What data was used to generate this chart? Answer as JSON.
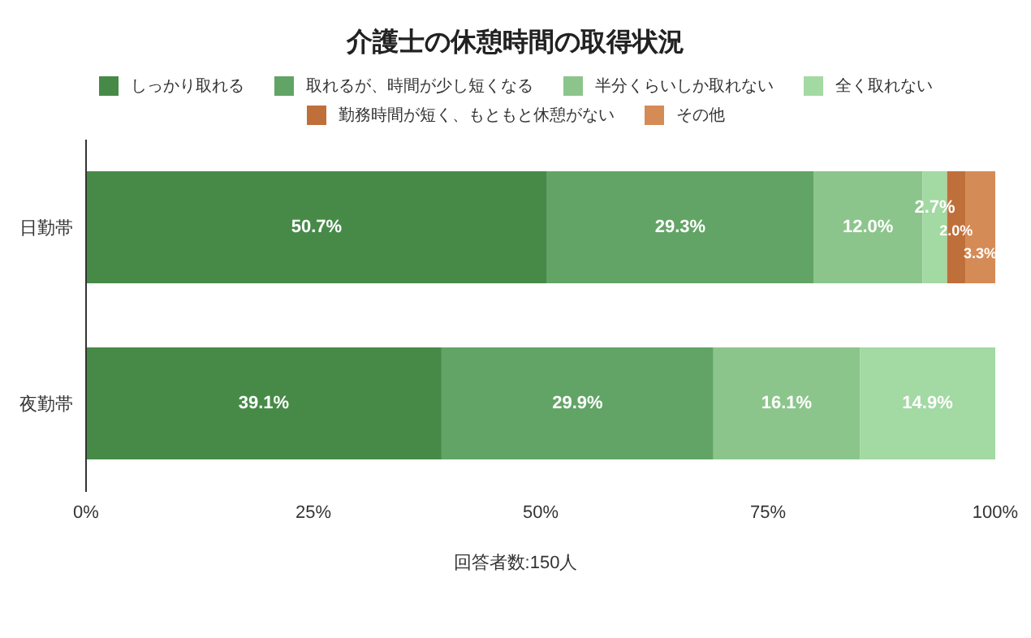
{
  "chart_data": {
    "type": "bar",
    "orientation": "horizontal",
    "stacked": true,
    "title": "介護士の休憩時間の取得状況",
    "xlabel": "回答者数:150人",
    "categories": [
      "日勤帯",
      "夜勤帯"
    ],
    "series": [
      {
        "name": "しっかり取れる",
        "color": "#478a48",
        "values": [
          50.7,
          39.1
        ],
        "value_labels": [
          "50.7%",
          "39.1%"
        ]
      },
      {
        "name": "取れるが、時間が少し短くなる",
        "color": "#62a466",
        "values": [
          29.3,
          29.9
        ],
        "value_labels": [
          "29.3%",
          "29.9%"
        ]
      },
      {
        "name": "半分くらいしか取れない",
        "color": "#8cc58c",
        "values": [
          12.0,
          16.1
        ],
        "value_labels": [
          "12.0%",
          "16.1%"
        ]
      },
      {
        "name": "全く取れない",
        "color": "#a3d9a3",
        "values": [
          2.7,
          14.9
        ],
        "value_labels": [
          "2.7%",
          "14.9%"
        ]
      },
      {
        "name": "勤務時間が短く、もともと休憩がない",
        "color": "#bf6f3a",
        "values": [
          2.0,
          null
        ],
        "value_labels": [
          "2.0%",
          null
        ]
      },
      {
        "name": "その他",
        "color": "#d58b55",
        "values": [
          3.3,
          null
        ],
        "value_labels": [
          "3.3%",
          null
        ]
      }
    ],
    "xlim": [
      0,
      100
    ],
    "xticks": [
      {
        "value": 0,
        "label": "0%"
      },
      {
        "value": 25,
        "label": "25%"
      },
      {
        "value": 50,
        "label": "50%"
      },
      {
        "value": 75,
        "label": "75%"
      },
      {
        "value": 100,
        "label": "100%"
      }
    ],
    "grid": false,
    "legend": "top"
  }
}
